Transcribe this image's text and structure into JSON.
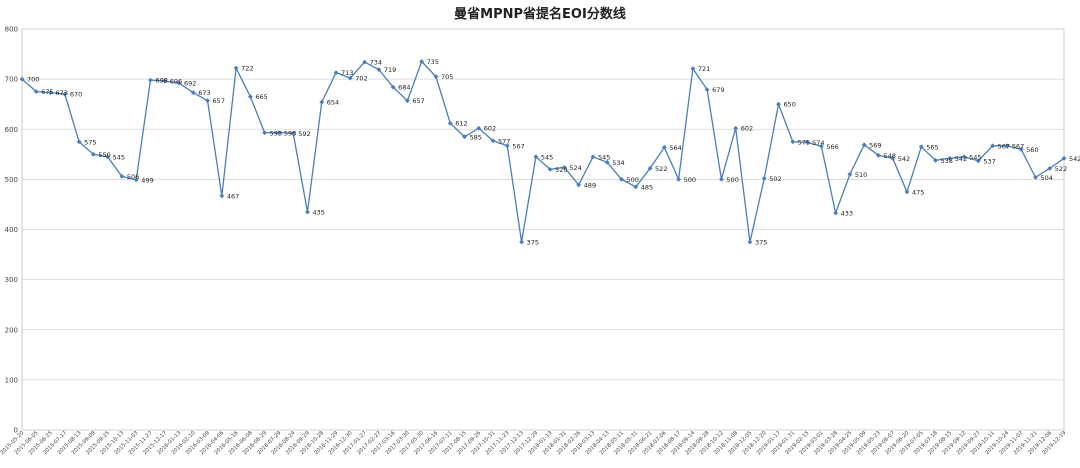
{
  "chart_data": {
    "type": "line",
    "title": "曼省MPNP省提名EOI分数线",
    "xlabel": "",
    "ylabel": "",
    "ylim": [
      0,
      800
    ],
    "yticks": [
      0,
      100,
      200,
      300,
      400,
      500,
      600,
      700,
      800
    ],
    "grid": true,
    "legend": "none",
    "line_color": "#4a7ebb",
    "categories": [
      "2015-05-20",
      "2015-06-05",
      "2015-06-25",
      "2015-07-17",
      "2015-08-13",
      "2015-09-09",
      "2015-09-25",
      "2015-10-13",
      "2015-11-03",
      "2015-11-27",
      "2015-12-17",
      "2016-01-13",
      "2016-02-10",
      "2016-03-09",
      "2016-04-06",
      "2016-05-16",
      "2016-06-08",
      "2016-06-29",
      "2016-07-29",
      "2016-08-24",
      "2016-09-29",
      "2016-10-28",
      "2016-11-29",
      "2016-12-30",
      "2017-01-27",
      "2017-02-27",
      "2017-03-16",
      "2017-03-30",
      "2017-05-30",
      "2017-06-16",
      "2017-07-11",
      "2017-08-15",
      "2017-09-26",
      "2017-10-31",
      "2017-11-23",
      "2017-12-13",
      "2017-12-29",
      "2018-01-13",
      "2018-01-31",
      "2018-02-26",
      "2018-03-13",
      "2018-04-13",
      "2018-05-11",
      "2018-05-31",
      "2018-06-21",
      "2018-07-06",
      "2018-08-17",
      "2018-09-14",
      "2018-09-28",
      "2018-10-12",
      "2018-11-08",
      "2018-12-05",
      "2018-12-20",
      "2019-01-17",
      "2019-01-31",
      "2019-02-15",
      "2019-03-01",
      "2019-03-28",
      "2019-04-25",
      "2019-05-09",
      "2019-05-23",
      "2019-06-07",
      "2019-06-20",
      "2019-07-05",
      "2019-07-18",
      "2019-08-15",
      "2019-09-12",
      "2019-09-27",
      "2019-10-11",
      "2019-10-24",
      "2019-11-07",
      "2019-11-21",
      "2019-12-06",
      "2019-12-19"
    ],
    "values": [
      700,
      675,
      673,
      670,
      575,
      550,
      545,
      506,
      499,
      698,
      696,
      692,
      673,
      657,
      467,
      722,
      665,
      593,
      593,
      592,
      435,
      654,
      713,
      702,
      734,
      719,
      684,
      657,
      735,
      705,
      612,
      585,
      602,
      577,
      567,
      375,
      545,
      520,
      524,
      489,
      545,
      534,
      500,
      485,
      522,
      564,
      500,
      721,
      679,
      500,
      602,
      375,
      502,
      650,
      575,
      574,
      566,
      433,
      510,
      569,
      548,
      542,
      475,
      565,
      538,
      542,
      545,
      537,
      567,
      567,
      560,
      504,
      522,
      542
    ],
    "data_labels": [
      "700",
      "675",
      "673",
      "670",
      "575",
      "550",
      "545",
      "506",
      "499",
      "698",
      "696",
      "692",
      "673",
      "657",
      "467",
      "722",
      "665",
      "593",
      "593",
      "592",
      "435",
      "654",
      "713",
      "702",
      "734",
      "719",
      "684",
      "657",
      "735",
      "705",
      "612",
      "585",
      "602",
      "577",
      "567",
      "375",
      "545",
      "520",
      "524",
      "489",
      "545",
      "534",
      "500",
      "485",
      "522",
      "564",
      "500",
      "721",
      "679",
      "500",
      "602",
      "375",
      "502",
      "650",
      "575",
      "574",
      "566",
      "433",
      "510",
      "569",
      "548",
      "542",
      "475",
      "565",
      "538",
      "542",
      "545",
      "537",
      "567",
      "567",
      "560",
      "504",
      "522",
      "542"
    ]
  }
}
